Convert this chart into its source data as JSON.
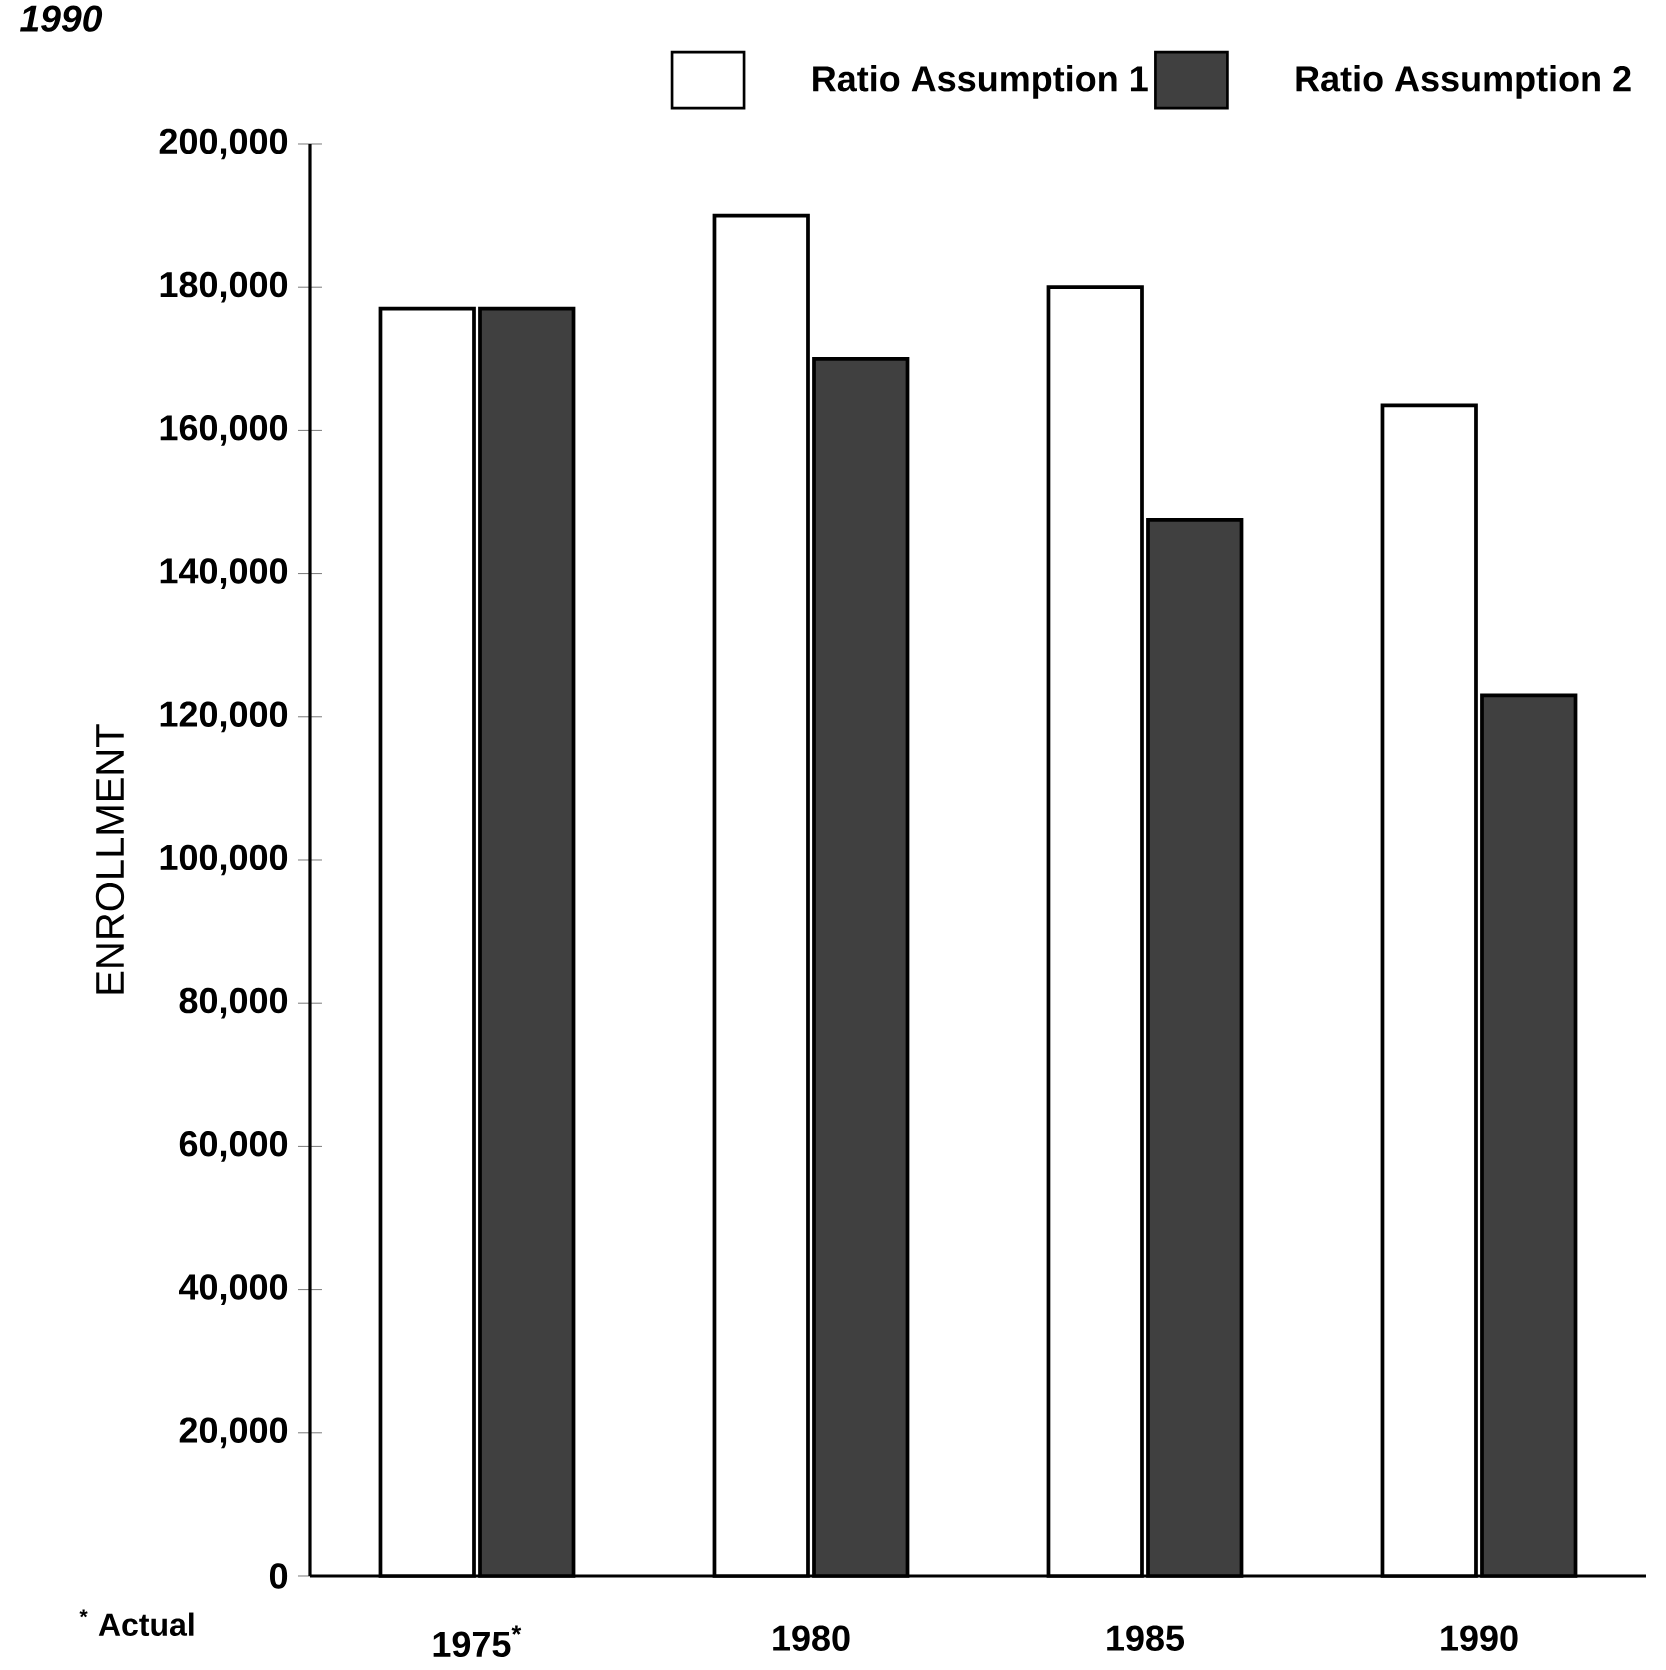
{
  "chart_data": {
    "type": "bar",
    "title": "1990",
    "ylabel": "ENROLLMENT",
    "categories": [
      "1975$^{*}$",
      "1980",
      "1985",
      "1990"
    ],
    "series": [
      {
        "name": "Ratio Assumption 1",
        "color": "#ffffff",
        "values": [
          177000,
          190000,
          180000,
          163500
        ]
      },
      {
        "name": "Ratio Assumption 2",
        "color": "#404040",
        "values": [
          177000,
          170000,
          147500,
          123000
        ]
      }
    ],
    "ylim": [
      0,
      200000
    ],
    "yticks": [
      {
        "value": 0,
        "label": "0"
      },
      {
        "value": 20000,
        "label": "20,000"
      },
      {
        "value": 40000,
        "label": "40,000"
      },
      {
        "value": 60000,
        "label": "60,000"
      },
      {
        "value": 80000,
        "label": "80,000"
      },
      {
        "value": 100000,
        "label": "100,000"
      },
      {
        "value": 120000,
        "label": "120,000"
      },
      {
        "value": 140000,
        "label": "140,000"
      },
      {
        "value": 160000,
        "label": "160,000"
      },
      {
        "value": 180000,
        "label": "180,000"
      },
      {
        "value": 200000,
        "label": "200,000"
      }
    ],
    "legend": "top right",
    "annotations": [
      "$^{*}$ Actual"
    ]
  }
}
